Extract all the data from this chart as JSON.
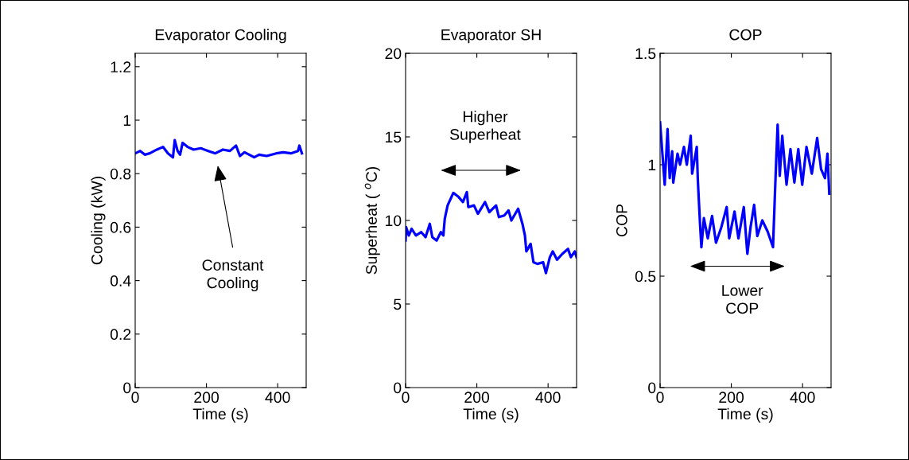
{
  "chart_data": [
    {
      "type": "line",
      "title": "Evaporator Cooling",
      "xlabel": "Time (s)",
      "ylabel": "Cooling (kW)",
      "xlim": [
        0,
        480
      ],
      "ylim": [
        0,
        1.25
      ],
      "xticks": [
        0,
        200,
        400
      ],
      "yticks": [
        0,
        0.2,
        0.4,
        0.6,
        0.8,
        1,
        1.2
      ],
      "x": [
        0,
        14,
        27,
        41,
        61,
        78,
        92,
        106,
        111,
        119,
        126,
        133,
        147,
        164,
        184,
        205,
        225,
        246,
        266,
        283,
        294,
        307,
        334,
        348,
        369,
        396,
        416,
        437,
        457,
        461,
        468
      ],
      "series": [
        {
          "color": "#0000ff",
          "values": [
            0.876,
            0.885,
            0.871,
            0.876,
            0.89,
            0.9,
            0.876,
            0.861,
            0.925,
            0.885,
            0.871,
            0.915,
            0.9,
            0.89,
            0.895,
            0.885,
            0.876,
            0.89,
            0.885,
            0.905,
            0.866,
            0.88,
            0.861,
            0.871,
            0.866,
            0.876,
            0.88,
            0.876,
            0.885,
            0.905,
            0.876
          ]
        }
      ],
      "annotations": [
        "Constant\nCooling"
      ]
    },
    {
      "type": "line",
      "title": "Evaporator SH",
      "xlabel": "Time (s)",
      "ylabel": "Superheat ( $^{o}$C)",
      "xlim": [
        0,
        480
      ],
      "ylim": [
        0,
        20
      ],
      "xticks": [
        0,
        200,
        400
      ],
      "yticks": [
        0,
        5,
        10,
        15,
        20
      ],
      "x": [
        0,
        1.5,
        9,
        17,
        29,
        44,
        56,
        68,
        75,
        87,
        99,
        106,
        110,
        118,
        134,
        149,
        161,
        172,
        176,
        192,
        203,
        223,
        235,
        254,
        262,
        277,
        289,
        297,
        316,
        328,
        335,
        339,
        351,
        359,
        370,
        386,
        394,
        405,
        413,
        425,
        440,
        456,
        464,
        475,
        480
      ],
      "series": [
        {
          "color": "#0000ff",
          "values": [
            8.8,
            9.6,
            9.1,
            9.5,
            9.1,
            9.3,
            9.0,
            9.8,
            9.0,
            8.8,
            9.3,
            9.1,
            10.1,
            10.9,
            11.65,
            11.4,
            11.1,
            11.7,
            10.8,
            10.9,
            10.4,
            11.1,
            10.5,
            10.9,
            10.2,
            10.3,
            10.6,
            10.0,
            10.7,
            9.8,
            9.1,
            8.15,
            8.6,
            7.5,
            7.4,
            7.5,
            6.85,
            7.8,
            8.15,
            7.65,
            8.0,
            8.3,
            7.8,
            8.15,
            7.8
          ]
        }
      ],
      "annotations": [
        "Higher\nSuperheat"
      ]
    },
    {
      "type": "line",
      "title": "COP",
      "xlabel": "Time (s)",
      "ylabel": "COP",
      "xlim": [
        0,
        480
      ],
      "ylim": [
        0,
        1.5
      ],
      "xticks": [
        0,
        200,
        400
      ],
      "yticks": [
        0,
        0.5,
        1,
        1.5
      ],
      "x": [
        0,
        6,
        13,
        21,
        27,
        34,
        37,
        49,
        56,
        67,
        75,
        86,
        90,
        103,
        106,
        112,
        116,
        123,
        134,
        146,
        157,
        172,
        187,
        194,
        209,
        220,
        235,
        245,
        254,
        264,
        273,
        287,
        302,
        317,
        325,
        330,
        336,
        343,
        355,
        366,
        377,
        388,
        399,
        411,
        426,
        441,
        452,
        463,
        470,
        475
      ],
      "series": [
        {
          "color": "#0000ff",
          "values": [
            1.19,
            1.06,
            0.91,
            1.16,
            0.94,
            1.06,
            0.92,
            1.05,
            1.0,
            1.08,
            1.0,
            1.13,
            0.96,
            1.08,
            0.93,
            0.74,
            0.63,
            0.76,
            0.67,
            0.77,
            0.65,
            0.72,
            0.81,
            0.67,
            0.79,
            0.67,
            0.81,
            0.6,
            0.72,
            0.82,
            0.68,
            0.75,
            0.7,
            0.63,
            0.98,
            1.18,
            0.95,
            1.13,
            0.91,
            1.07,
            0.92,
            1.07,
            0.91,
            1.08,
            0.96,
            1.12,
            0.98,
            0.94,
            1.05,
            0.87
          ]
        }
      ],
      "annotations": [
        "Lower\nCOP"
      ]
    }
  ]
}
